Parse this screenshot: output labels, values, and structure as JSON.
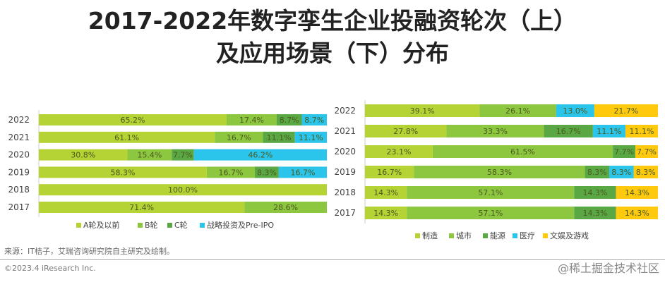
{
  "title_line1": "2017-2022年数字孪生企业投融资轮次（上）",
  "title_line2": "及应用场景（下）分布",
  "source": "来源：IT桔子，艾瑞咨询研究院自主研究及绘制。",
  "copyright": "©2023.4 iResearch Inc.",
  "watermark": "@稀土掘金技术社区",
  "chart_data": [
    {
      "type": "bar",
      "orientation": "horizontal",
      "stacked": "100%",
      "categories": [
        "2022",
        "2021",
        "2020",
        "2019",
        "2018",
        "2017"
      ],
      "legend_position": "bottom",
      "series": [
        {
          "name": "A轮及以前",
          "color": "#b5d334",
          "values": [
            65.2,
            61.1,
            30.8,
            58.3,
            100.0,
            71.4
          ]
        },
        {
          "name": "B轮",
          "color": "#8dc63f",
          "values": [
            17.4,
            16.7,
            15.4,
            16.7,
            0,
            28.6
          ]
        },
        {
          "name": "C轮",
          "color": "#5aa843",
          "values": [
            8.7,
            11.1,
            7.7,
            8.3,
            0,
            0
          ]
        },
        {
          "name": "战略投资及Pre-IPO",
          "color": "#2bc4ea",
          "values": [
            8.7,
            11.1,
            46.2,
            16.7,
            0,
            0
          ]
        }
      ]
    },
    {
      "type": "bar",
      "orientation": "horizontal",
      "stacked": "100%",
      "categories": [
        "2022",
        "2021",
        "2020",
        "2019",
        "2018",
        "2017"
      ],
      "legend_position": "bottom",
      "series": [
        {
          "name": "制造",
          "color": "#b5d334",
          "values": [
            39.1,
            27.8,
            23.1,
            16.7,
            14.3,
            14.3
          ]
        },
        {
          "name": "城市",
          "color": "#8dc63f",
          "values": [
            26.1,
            33.3,
            61.5,
            58.3,
            57.1,
            57.1
          ]
        },
        {
          "name": "能源",
          "color": "#5aa843",
          "values": [
            0,
            16.7,
            7.7,
            8.3,
            14.3,
            14.3
          ]
        },
        {
          "name": "医疗",
          "color": "#2bc4ea",
          "values": [
            13.0,
            11.1,
            0,
            8.3,
            0,
            0
          ]
        },
        {
          "name": "文娱及游戏",
          "color": "#ffc90e",
          "values": [
            21.7,
            11.1,
            7.7,
            8.3,
            14.3,
            14.3
          ]
        }
      ]
    }
  ]
}
